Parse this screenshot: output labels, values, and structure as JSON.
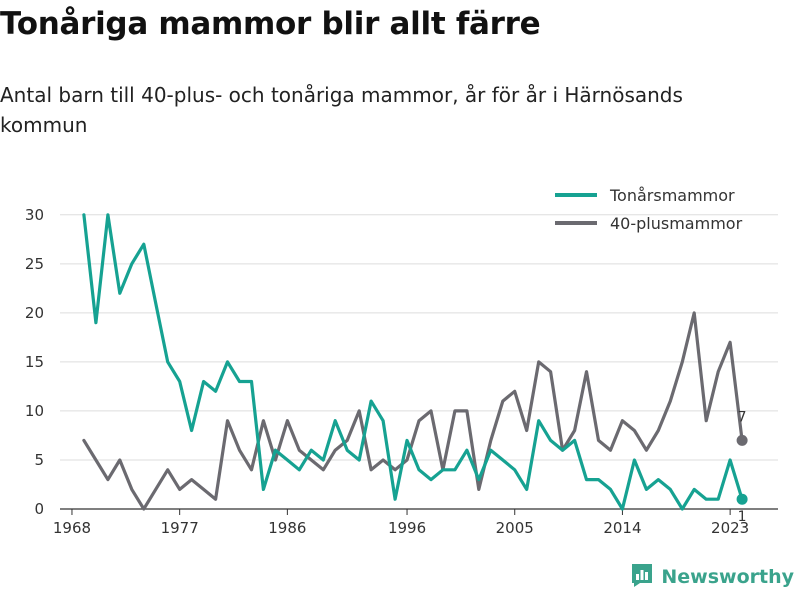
{
  "title": "Tonåriga mammor blir allt färre",
  "subtitle": "Antal barn till 40-plus- och tonåriga mammor, år för år i Härnösands kommun",
  "brand": "Newsworthy",
  "colors": {
    "teen": "#16a292",
    "forty": "#6b6a70",
    "grid": "#dddddd",
    "brand": "#3aa38c"
  },
  "chart_data": {
    "type": "line",
    "x": [
      1969,
      1970,
      1971,
      1972,
      1973,
      1974,
      1975,
      1976,
      1977,
      1978,
      1979,
      1980,
      1981,
      1982,
      1983,
      1984,
      1985,
      1986,
      1987,
      1988,
      1989,
      1990,
      1991,
      1992,
      1993,
      1994,
      1995,
      1996,
      1997,
      1998,
      1999,
      2000,
      2001,
      2002,
      2003,
      2004,
      2005,
      2006,
      2007,
      2008,
      2009,
      2010,
      2011,
      2012,
      2013,
      2014,
      2015,
      2016,
      2017,
      2018,
      2019,
      2020,
      2021,
      2022,
      2023,
      2024
    ],
    "series": [
      {
        "name": "Tonårsmammor",
        "values": [
          30,
          19,
          30,
          22,
          25,
          27,
          21,
          15,
          13,
          8,
          13,
          12,
          15,
          13,
          13,
          2,
          6,
          5,
          4,
          6,
          5,
          9,
          6,
          5,
          11,
          9,
          1,
          7,
          4,
          3,
          4,
          4,
          6,
          3,
          6,
          5,
          4,
          2,
          9,
          7,
          6,
          7,
          3,
          3,
          2,
          0,
          5,
          2,
          3,
          2,
          0,
          2,
          1,
          1,
          5,
          1
        ]
      },
      {
        "name": "40-plusmammor",
        "values": [
          7,
          5,
          3,
          5,
          2,
          0,
          2,
          4,
          2,
          3,
          2,
          1,
          9,
          6,
          4,
          9,
          5,
          9,
          6,
          5,
          4,
          6,
          7,
          10,
          4,
          5,
          4,
          5,
          9,
          10,
          4,
          10,
          10,
          2,
          7,
          11,
          12,
          8,
          15,
          14,
          6,
          8,
          14,
          7,
          6,
          9,
          8,
          6,
          8,
          11,
          15,
          20,
          9,
          14,
          17,
          7
        ]
      }
    ],
    "end_labels": [
      "7",
      "1"
    ],
    "x_ticks": [
      "1968",
      "1977",
      "1986",
      "1996",
      "2005",
      "2014",
      "2023"
    ],
    "x_tick_values": [
      1968,
      1977,
      1986,
      1996,
      2005,
      2014,
      2023
    ],
    "y_ticks": [
      "0",
      "5",
      "10",
      "15",
      "20",
      "25",
      "30"
    ],
    "y_tick_values": [
      0,
      5,
      10,
      15,
      20,
      25,
      30
    ],
    "xlim": [
      1967,
      2027
    ],
    "ylim": [
      0,
      31
    ],
    "grid": "horizontal",
    "legend": "top-right",
    "title": "Tonåriga mammor blir allt färre",
    "xlabel": "",
    "ylabel": ""
  }
}
